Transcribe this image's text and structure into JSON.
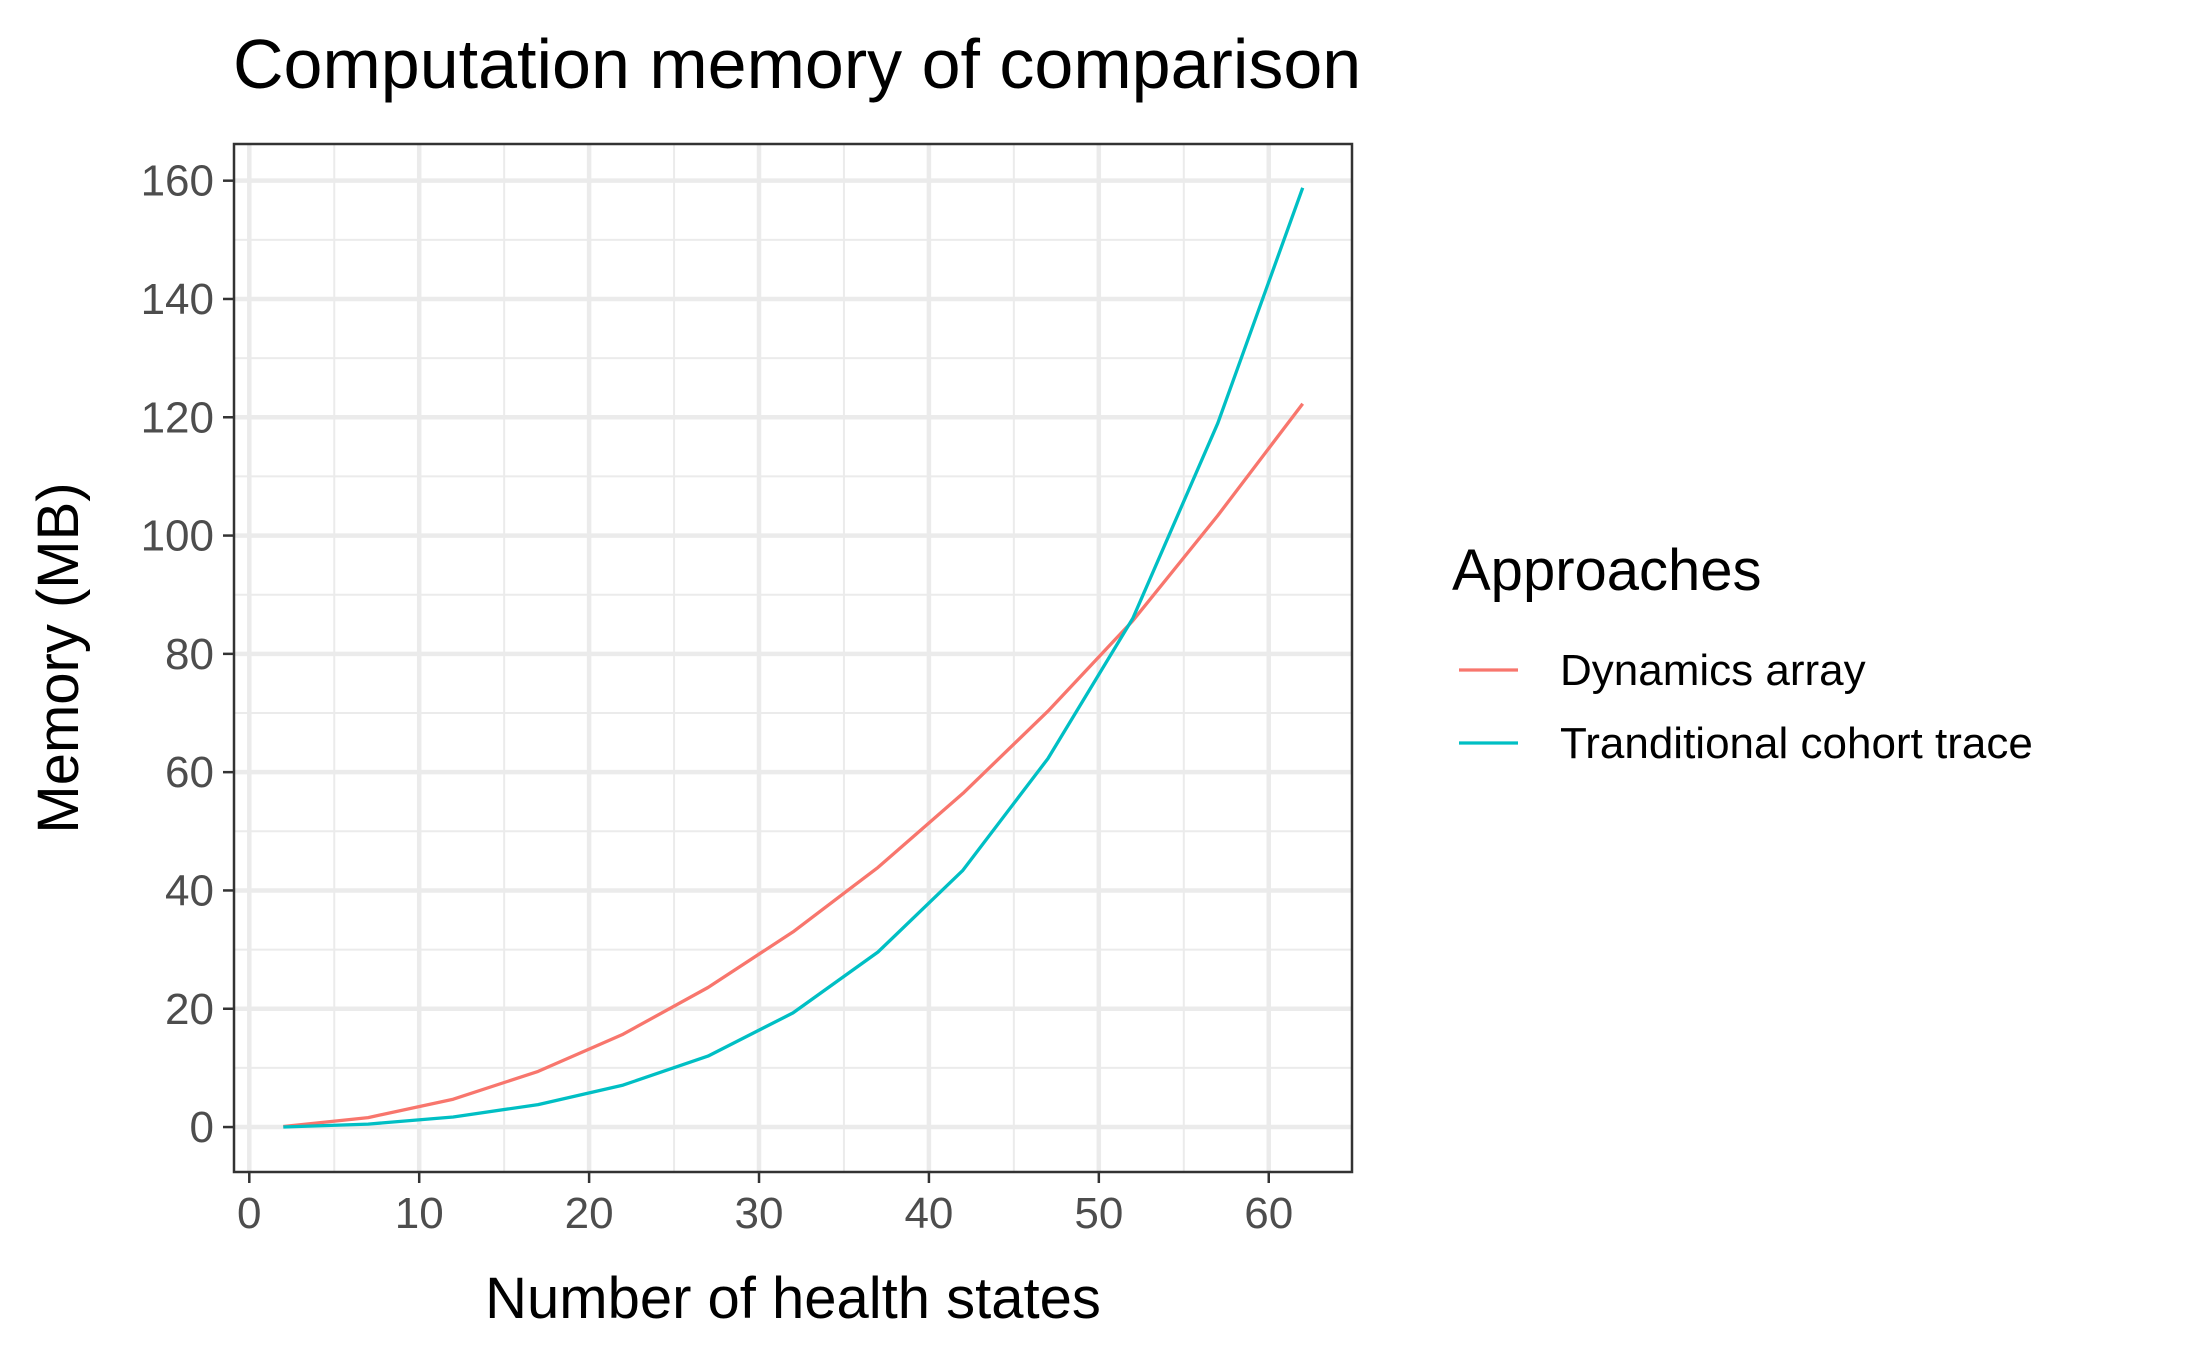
{
  "chart_data": {
    "type": "line",
    "title": "Computation memory of comparison",
    "xlabel": "Number of health states",
    "ylabel": "Memory (MB)",
    "xlim": [
      -0.9,
      64.9
    ],
    "ylim": [
      -7.6,
      166.2
    ],
    "x_ticks": [
      0,
      10,
      20,
      30,
      40,
      50,
      60
    ],
    "y_ticks": [
      0,
      20,
      40,
      60,
      80,
      100,
      120,
      140,
      160
    ],
    "x_tick_labels": [
      "0",
      "10",
      "20",
      "30",
      "40",
      "50",
      "60"
    ],
    "y_tick_labels": [
      "0",
      "20",
      "40",
      "60",
      "80",
      "100",
      "120",
      "140",
      "160"
    ],
    "grid": true,
    "legend": {
      "title": "Approaches",
      "position": "right"
    },
    "x": [
      2,
      7,
      12,
      17,
      22,
      27,
      32,
      37,
      42,
      47,
      52,
      57,
      62
    ],
    "series": [
      {
        "name": "Dynamics array",
        "color": "#F8766D",
        "values": [
          0.1,
          1.6,
          4.7,
          9.4,
          15.7,
          23.6,
          33.0,
          43.9,
          56.4,
          70.3,
          85.6,
          103.4,
          122.3
        ]
      },
      {
        "name": "Tranditional cohort trace",
        "color": "#00BFC4",
        "values": [
          0.0,
          0.5,
          1.7,
          3.8,
          7.1,
          12.0,
          19.3,
          29.6,
          43.4,
          62.3,
          86.0,
          119.0,
          158.8
        ]
      }
    ]
  }
}
